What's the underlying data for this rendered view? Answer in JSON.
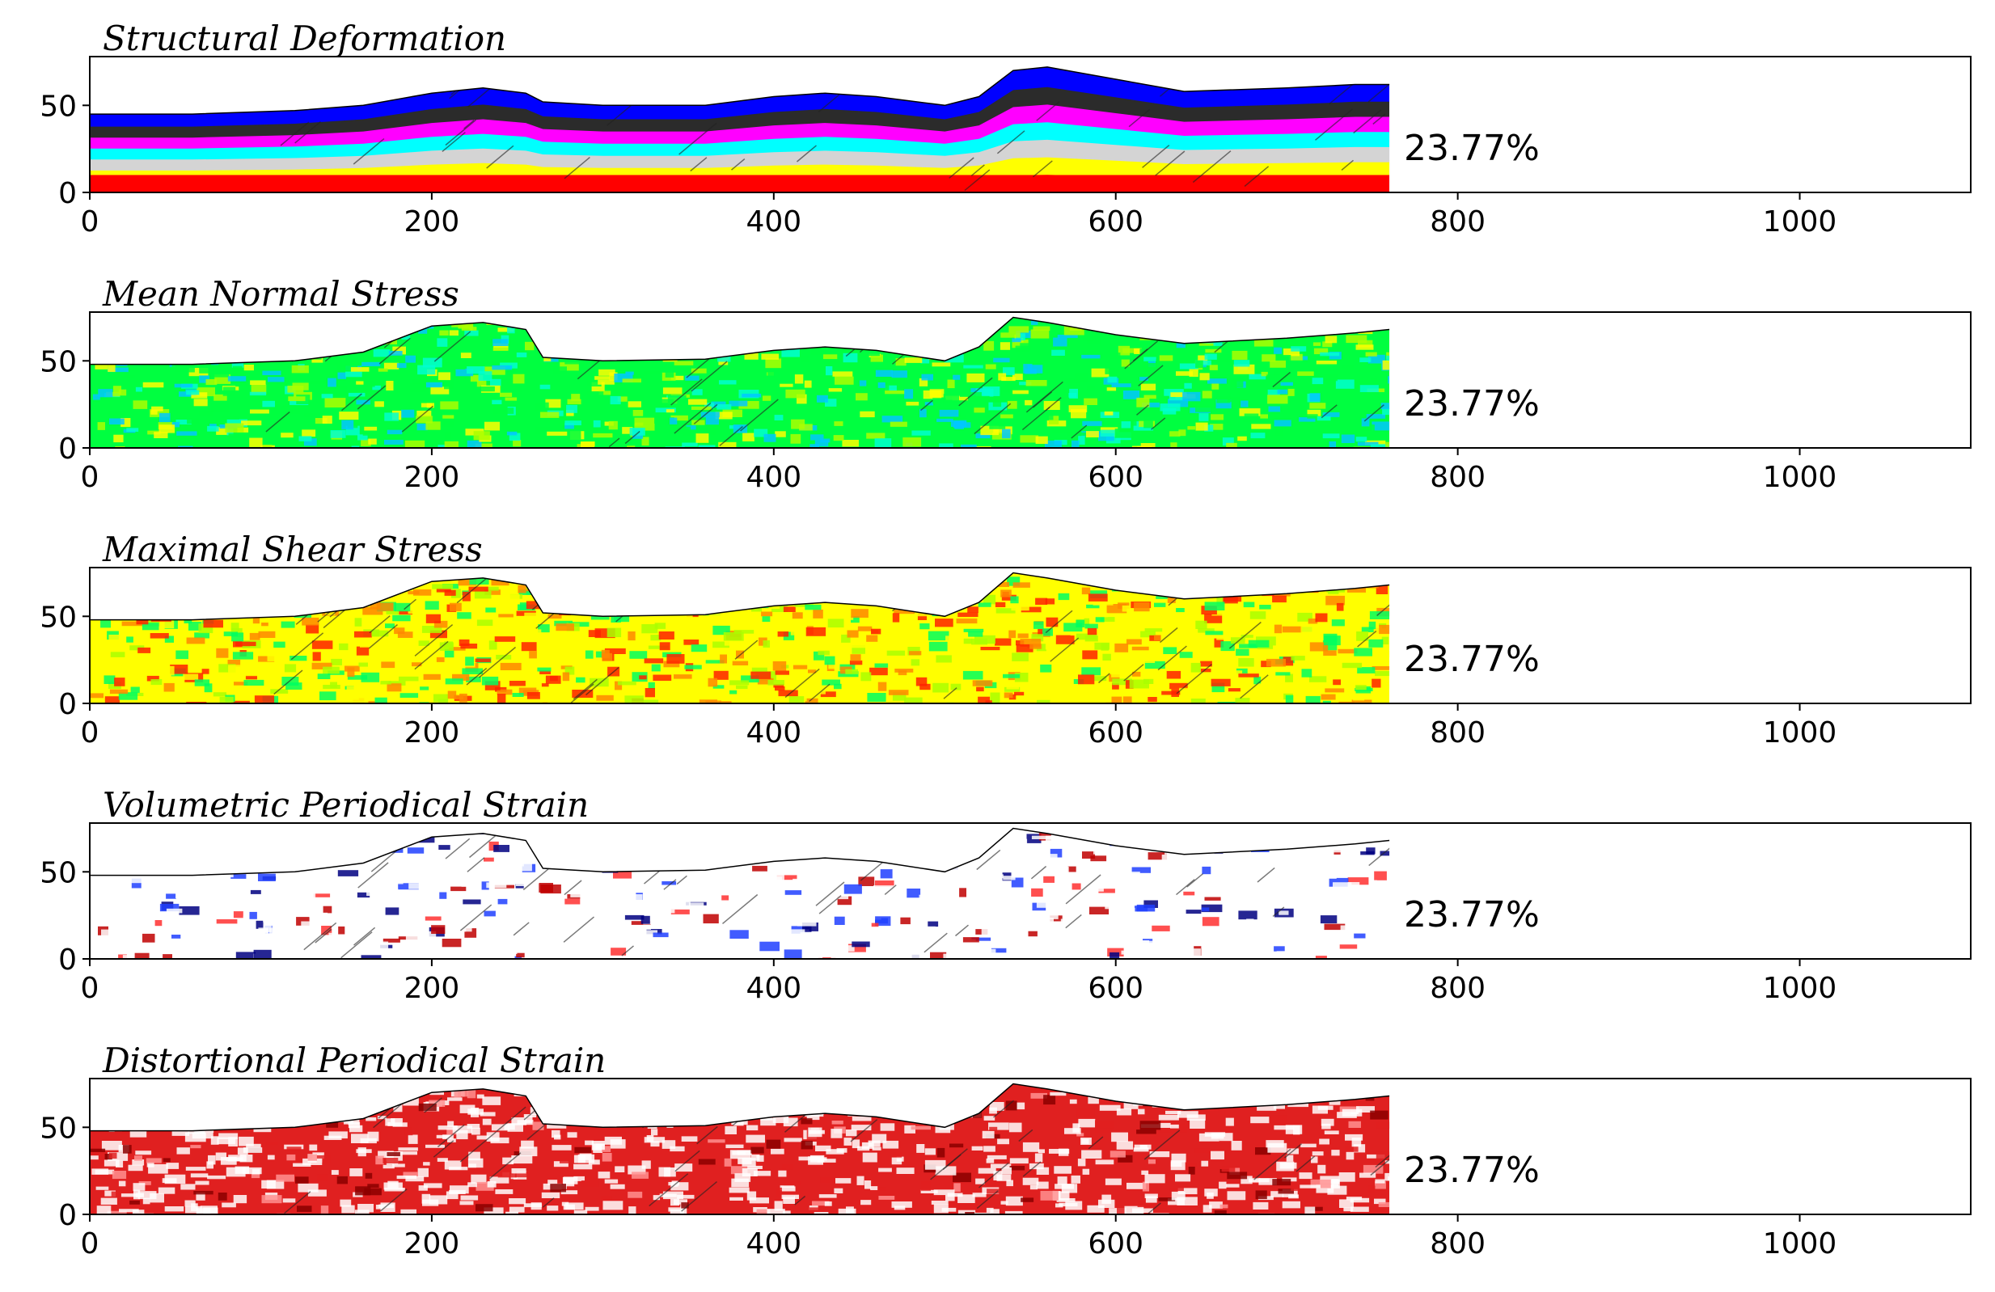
{
  "chart_data": [
    {
      "type": "heatmap",
      "title": "Structural Deformation",
      "annotation": "23.77%",
      "xlim": [
        0,
        1100
      ],
      "ylim": [
        0,
        78
      ],
      "xticks": [
        0,
        200,
        400,
        600,
        800,
        1000
      ],
      "yticks": [
        0,
        50
      ],
      "grid": false,
      "surface_profile": [
        [
          0,
          45
        ],
        [
          60,
          45
        ],
        [
          120,
          47
        ],
        [
          160,
          50
        ],
        [
          200,
          57
        ],
        [
          230,
          60
        ],
        [
          255,
          57
        ],
        [
          265,
          52
        ],
        [
          300,
          50
        ],
        [
          360,
          50
        ],
        [
          400,
          55
        ],
        [
          430,
          57
        ],
        [
          460,
          55
        ],
        [
          500,
          50
        ],
        [
          520,
          55
        ],
        [
          540,
          70
        ],
        [
          560,
          72
        ],
        [
          600,
          65
        ],
        [
          640,
          58
        ],
        [
          700,
          60
        ],
        [
          740,
          62
        ],
        [
          760,
          62
        ]
      ],
      "colormap": [
        "#ff0000",
        "#ffff00",
        "#d4d4d4",
        "#00ffff",
        "#ff00ff",
        "#2b2b2b",
        "#0000ff"
      ]
    },
    {
      "type": "heatmap",
      "title": "Mean Normal Stress",
      "annotation": "23.77%",
      "xlim": [
        0,
        1100
      ],
      "ylim": [
        0,
        78
      ],
      "xticks": [
        0,
        200,
        400,
        600,
        800,
        1000
      ],
      "yticks": [
        0,
        50
      ],
      "grid": false,
      "surface_profile": [
        [
          0,
          48
        ],
        [
          60,
          48
        ],
        [
          120,
          50
        ],
        [
          160,
          55
        ],
        [
          200,
          70
        ],
        [
          230,
          72
        ],
        [
          255,
          68
        ],
        [
          265,
          52
        ],
        [
          300,
          50
        ],
        [
          360,
          51
        ],
        [
          400,
          56
        ],
        [
          430,
          58
        ],
        [
          460,
          56
        ],
        [
          500,
          50
        ],
        [
          520,
          58
        ],
        [
          540,
          75
        ],
        [
          560,
          72
        ],
        [
          600,
          65
        ],
        [
          640,
          60
        ],
        [
          700,
          63
        ],
        [
          740,
          66
        ],
        [
          760,
          68
        ]
      ],
      "colormap": [
        "#00c8ff",
        "#00ffd0",
        "#00ff40",
        "#aaff00",
        "#ffff00"
      ]
    },
    {
      "type": "heatmap",
      "title": "Maximal Shear Stress",
      "annotation": "23.77%",
      "xlim": [
        0,
        1100
      ],
      "ylim": [
        0,
        78
      ],
      "xticks": [
        0,
        200,
        400,
        600,
        800,
        1000
      ],
      "yticks": [
        0,
        50
      ],
      "grid": false,
      "surface_profile": [
        [
          0,
          48
        ],
        [
          60,
          48
        ],
        [
          120,
          50
        ],
        [
          160,
          55
        ],
        [
          200,
          70
        ],
        [
          230,
          72
        ],
        [
          255,
          68
        ],
        [
          265,
          52
        ],
        [
          300,
          50
        ],
        [
          360,
          51
        ],
        [
          400,
          56
        ],
        [
          430,
          58
        ],
        [
          460,
          56
        ],
        [
          500,
          50
        ],
        [
          520,
          58
        ],
        [
          540,
          75
        ],
        [
          560,
          72
        ],
        [
          600,
          65
        ],
        [
          640,
          60
        ],
        [
          700,
          63
        ],
        [
          740,
          66
        ],
        [
          760,
          68
        ]
      ],
      "colormap": [
        "#00ff60",
        "#aaff00",
        "#ffff00",
        "#ff8800",
        "#ff2200"
      ]
    },
    {
      "type": "heatmap",
      "title": "Volumetric Periodical Strain",
      "annotation": "23.77%",
      "xlim": [
        0,
        1100
      ],
      "ylim": [
        0,
        78
      ],
      "xticks": [
        0,
        200,
        400,
        600,
        800,
        1000
      ],
      "yticks": [
        0,
        50
      ],
      "grid": false,
      "surface_profile": [
        [
          0,
          48
        ],
        [
          60,
          48
        ],
        [
          120,
          50
        ],
        [
          160,
          55
        ],
        [
          200,
          70
        ],
        [
          230,
          72
        ],
        [
          255,
          68
        ],
        [
          265,
          52
        ],
        [
          300,
          50
        ],
        [
          360,
          51
        ],
        [
          400,
          56
        ],
        [
          430,
          58
        ],
        [
          460,
          56
        ],
        [
          500,
          50
        ],
        [
          520,
          58
        ],
        [
          540,
          75
        ],
        [
          560,
          72
        ],
        [
          600,
          65
        ],
        [
          640,
          60
        ],
        [
          700,
          63
        ],
        [
          740,
          66
        ],
        [
          760,
          68
        ]
      ],
      "colormap": [
        "#000080",
        "#2040ff",
        "#ffffff",
        "#ff3030",
        "#c00000"
      ]
    },
    {
      "type": "heatmap",
      "title": "Distortional Periodical Strain",
      "annotation": "23.77%",
      "xlim": [
        0,
        1100
      ],
      "ylim": [
        0,
        78
      ],
      "xticks": [
        0,
        200,
        400,
        600,
        800,
        1000
      ],
      "yticks": [
        0,
        50
      ],
      "grid": false,
      "surface_profile": [
        [
          0,
          48
        ],
        [
          60,
          48
        ],
        [
          120,
          50
        ],
        [
          160,
          55
        ],
        [
          200,
          70
        ],
        [
          230,
          72
        ],
        [
          255,
          68
        ],
        [
          265,
          52
        ],
        [
          300,
          50
        ],
        [
          360,
          51
        ],
        [
          400,
          56
        ],
        [
          430,
          58
        ],
        [
          460,
          56
        ],
        [
          500,
          50
        ],
        [
          520,
          58
        ],
        [
          540,
          75
        ],
        [
          560,
          72
        ],
        [
          600,
          65
        ],
        [
          640,
          60
        ],
        [
          700,
          63
        ],
        [
          740,
          66
        ],
        [
          760,
          68
        ]
      ],
      "colormap": [
        "#ffffff",
        "#ff9090",
        "#e02020",
        "#8b0000"
      ]
    }
  ]
}
